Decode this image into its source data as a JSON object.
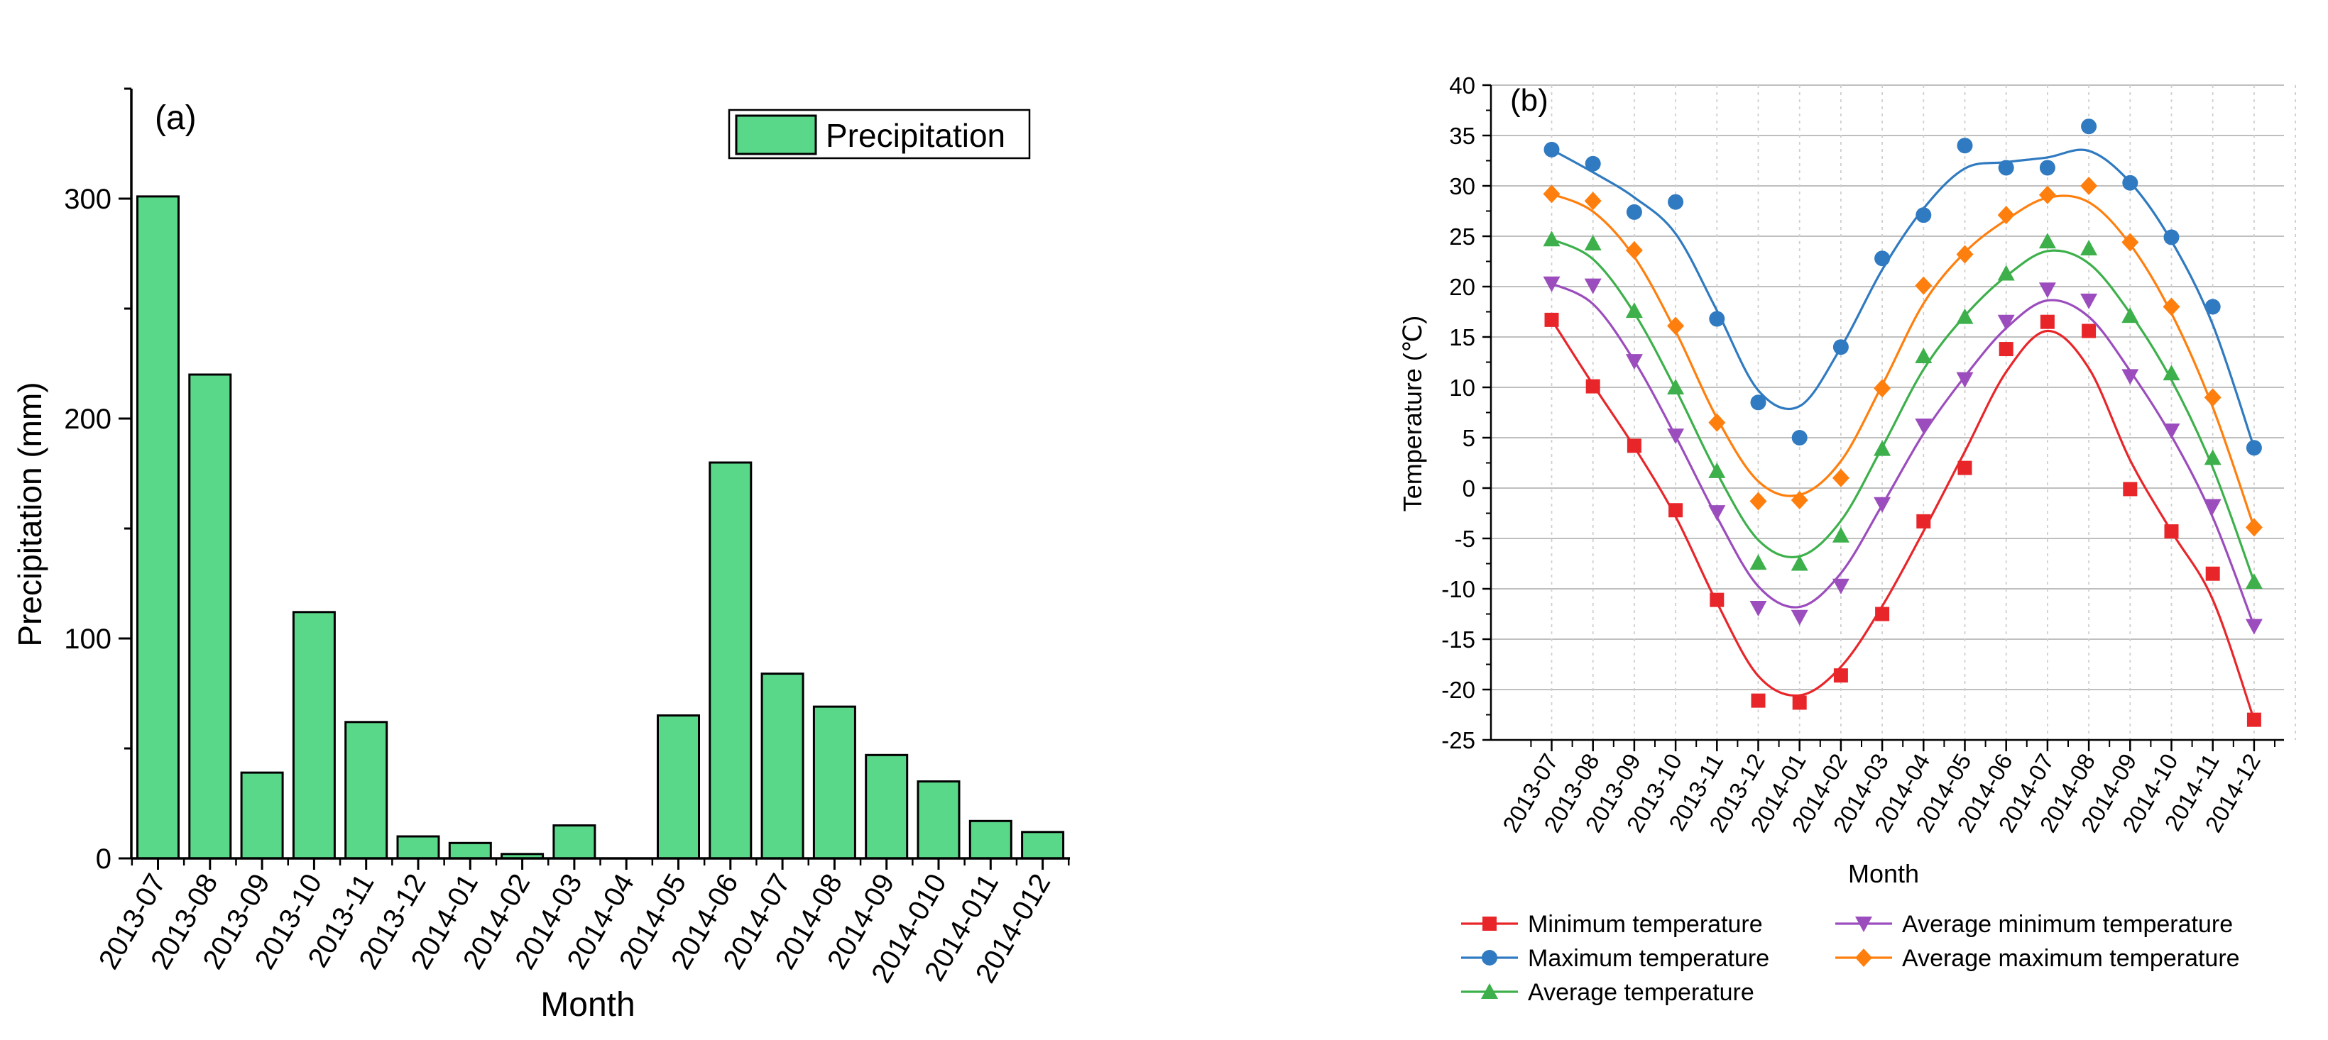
{
  "chart_data": [
    {
      "panel": "(a)",
      "type": "bar",
      "title": "",
      "xlabel": "Month",
      "ylabel": "Precipitation (mm)",
      "ylim": [
        0,
        350
      ],
      "yticks": [
        0,
        100,
        200,
        300
      ],
      "legend": "top-right",
      "grid": false,
      "categories": [
        "2013-07",
        "2013-08",
        "2013-09",
        "2013-10",
        "2013-11",
        "2013-12",
        "2014-01",
        "2014-02",
        "2014-03",
        "2014-04",
        "2014-05",
        "2014-06",
        "2014-07",
        "2014-08",
        "2014-09",
        "2014-010",
        "2014-011",
        "2014-012"
      ],
      "series": [
        {
          "name": "Precipitation",
          "color": "#5ad88a",
          "values": [
            301,
            220,
            39,
            112,
            62,
            10,
            7,
            2,
            15,
            0,
            65,
            180,
            84,
            69,
            47,
            35,
            17,
            12
          ]
        }
      ]
    },
    {
      "panel": "(b)",
      "type": "line",
      "title": "",
      "xlabel": "Month",
      "ylabel": "Temperature (℃)",
      "ylim": [
        -25,
        40
      ],
      "yticks": [
        -25,
        -20,
        -15,
        -10,
        -5,
        0,
        5,
        10,
        15,
        20,
        25,
        30,
        35,
        40
      ],
      "legend": "bottom",
      "grid": true,
      "categories": [
        "2013-07",
        "2013-08",
        "2013-09",
        "2013-10",
        "2013-11",
        "2013-12",
        "2014-01",
        "2014-02",
        "2014-03",
        "2014-04",
        "2014-05",
        "2014-06",
        "2014-07",
        "2014-08",
        "2014-09",
        "2014-10",
        "2014-11",
        "2014-12"
      ],
      "series": [
        {
          "name": "Minimum temperature",
          "color": "#e8262a",
          "marker": "square",
          "values": [
            16.7,
            10.1,
            4.2,
            -2.2,
            -11.1,
            -21.1,
            -21.3,
            -18.6,
            -12.5,
            -3.3,
            2.0,
            13.8,
            16.5,
            15.6,
            -0.1,
            -4.3,
            -8.5,
            -23.0
          ]
        },
        {
          "name": "Maximum temperature",
          "color": "#2f7ac0",
          "marker": "circle",
          "values": [
            33.6,
            32.2,
            27.4,
            28.4,
            16.8,
            8.5,
            5.0,
            14.0,
            22.8,
            27.1,
            34.0,
            31.8,
            31.8,
            35.9,
            30.3,
            24.9,
            18.0,
            4.0
          ]
        },
        {
          "name": "Average temperature",
          "color": "#3db04b",
          "marker": "triangle-up",
          "values": [
            24.7,
            24.3,
            17.6,
            10.0,
            1.7,
            -7.4,
            -7.5,
            -4.7,
            3.9,
            13.1,
            17.0,
            21.3,
            24.5,
            23.8,
            17.1,
            11.4,
            3.0,
            -9.3
          ]
        },
        {
          "name": "Average minimum temperature",
          "color": "#9b4dbd",
          "marker": "triangle-down",
          "values": [
            20.3,
            20.1,
            12.6,
            5.2,
            -2.4,
            -11.9,
            -12.8,
            -9.7,
            -1.6,
            6.2,
            10.8,
            16.5,
            19.7,
            18.6,
            11.1,
            5.7,
            -1.8,
            -13.7
          ]
        },
        {
          "name": "Average maximum temperature",
          "color": "#ff7f0e",
          "marker": "diamond",
          "values": [
            29.2,
            28.5,
            23.6,
            16.1,
            6.5,
            -1.3,
            -1.2,
            1.0,
            9.9,
            20.1,
            23.2,
            27.1,
            29.1,
            30.0,
            24.4,
            18.0,
            9.0,
            -3.9
          ]
        }
      ]
    }
  ]
}
